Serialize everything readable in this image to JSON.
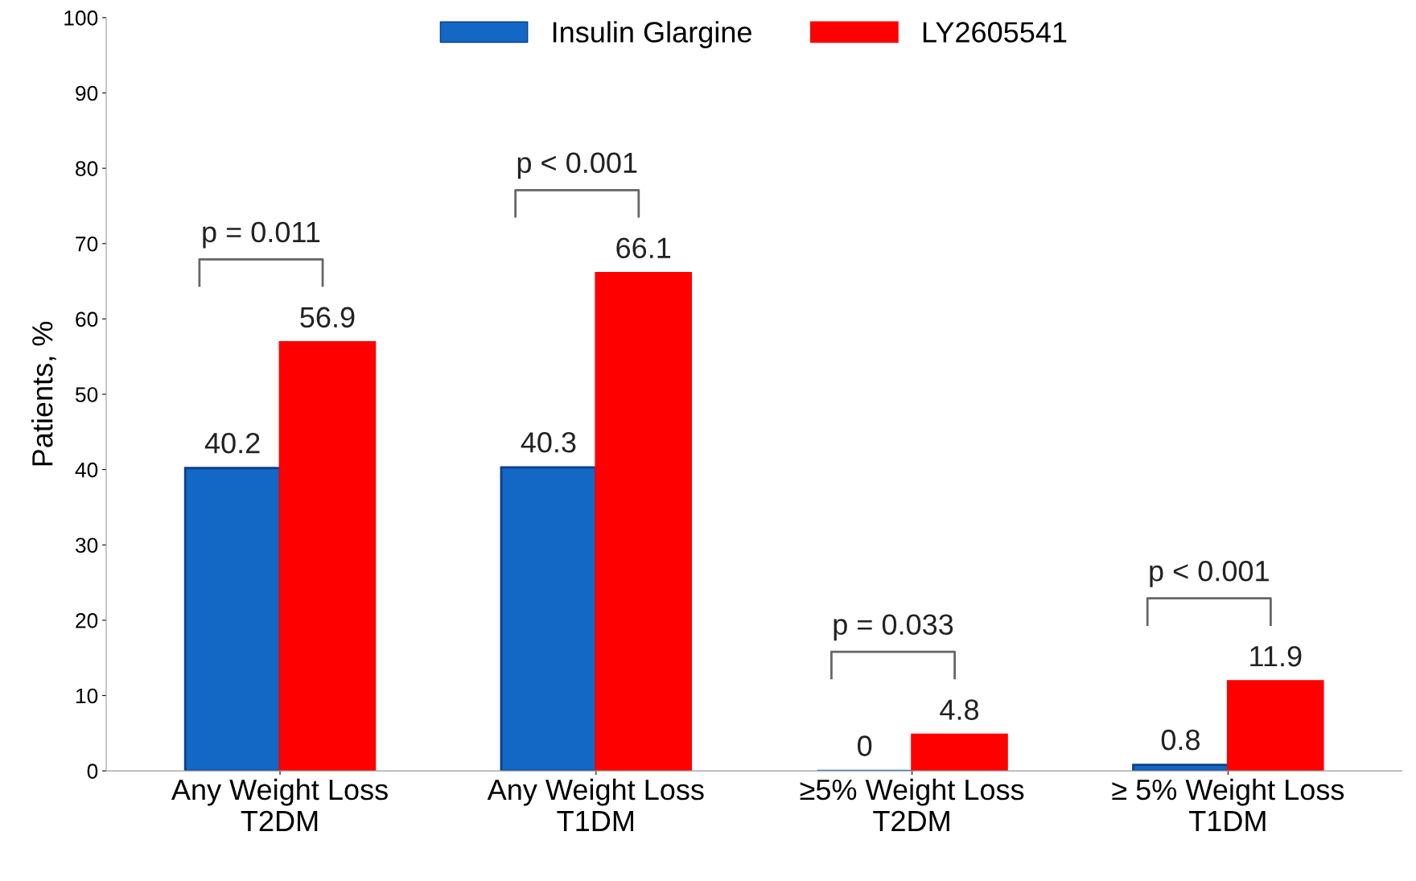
{
  "chart_data": {
    "type": "bar",
    "ylabel": "Patients, %",
    "categories": [
      "Any Weight Loss\nT2DM",
      "Any Weight Loss\nT1DM",
      "≥5% Weight Loss\nT2DM",
      "≥ 5% Weight Loss\nT1DM"
    ],
    "series": [
      {
        "name": "Insulin Glargine",
        "color": "#1268c4",
        "values": [
          40.2,
          40.3,
          0,
          0.8
        ]
      },
      {
        "name": "LY2605541",
        "color": "#ff0000",
        "values": [
          56.9,
          66.1,
          4.8,
          11.9
        ]
      }
    ],
    "ylim": [
      0,
      100
    ],
    "yticks": [
      0,
      10,
      20,
      30,
      40,
      50,
      60,
      70,
      80,
      90,
      100
    ],
    "data_labels": true,
    "grid": false,
    "legend": "top",
    "annotations": [
      "p = 0.011",
      "p < 0.001",
      "p = 0.033",
      "p < 0.001"
    ]
  }
}
